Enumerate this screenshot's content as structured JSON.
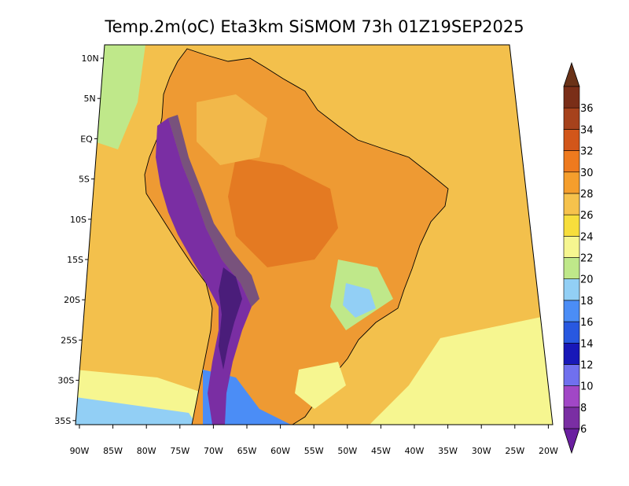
{
  "title": "Temp.2m(oC) Eta3km SiSMOM 73h 01Z19SEP2025",
  "map": {
    "lat_labels": [
      "10N",
      "5N",
      "EQ",
      "5S",
      "10S",
      "15S",
      "20S",
      "25S",
      "30S",
      "35S"
    ],
    "lon_labels": [
      "90W",
      "85W",
      "80W",
      "75W",
      "70W",
      "65W",
      "60W",
      "55W",
      "50W",
      "45W",
      "40W",
      "35W",
      "30W",
      "25W",
      "20W"
    ],
    "ocean_color": "#f3c04c",
    "land_color": "#ee9a33"
  },
  "colorbar": {
    "levels": [
      "6",
      "8",
      "10",
      "12",
      "14",
      "16",
      "18",
      "20",
      "22",
      "24",
      "26",
      "28",
      "30",
      "32",
      "34",
      "36"
    ],
    "colors": [
      "#7a2ea3",
      "#a147c6",
      "#7070ee",
      "#1818b8",
      "#2858e0",
      "#4b8df6",
      "#92cff5",
      "#bfe88a",
      "#f6f690",
      "#f7de3c",
      "#f6c24c",
      "#f59e2c",
      "#ee7a1e",
      "#d2561a",
      "#a6421c",
      "#7a2e18"
    ],
    "arrow_low_color": "#6a1fa0",
    "arrow_high_color": "#6a3218"
  }
}
